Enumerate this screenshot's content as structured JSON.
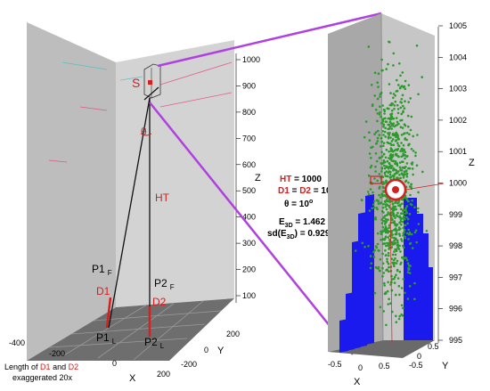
{
  "left_plot": {
    "z_ticks": [
      "100",
      "200",
      "300",
      "400",
      "500",
      "600",
      "700",
      "800",
      "900",
      "1000"
    ],
    "z_axis_label": "Z",
    "x_ticks": [
      "-400",
      "-200",
      "0",
      "200"
    ],
    "x_axis_label": "X",
    "y_ticks": [
      "-200",
      "0",
      "200"
    ],
    "y_axis_label": "Y",
    "labels": {
      "source": "S",
      "theta": "θ",
      "ht": "HT",
      "p1": "P1",
      "p1_sub_f": "F",
      "p1_sub_l": "L",
      "p2": "P2",
      "p2_sub_f": "F",
      "p2_sub_l": "L",
      "d1": "D1",
      "d2": "D2"
    },
    "note_prefix": "Length of ",
    "note_d1": "D1",
    "note_and": " and ",
    "note_d2": "D2",
    "note_line2": "exaggerated 20x"
  },
  "params": {
    "ht_label": "HT",
    "ht_value": " = 1000",
    "d1": "D1",
    "eq": " = ",
    "d2": "D2",
    "d_value": " = 10",
    "theta_label": "θ = 10",
    "theta_sup": "o",
    "e3d_label": "E",
    "e3d_sub": "3D",
    "e3d_value": " = 1.462",
    "sd_label": "sd(E",
    "sd_sub": "3D",
    "sd_value": ") = 0.929"
  },
  "right_plot": {
    "z_ticks": [
      "995",
      "996",
      "997",
      "998",
      "999",
      "1000",
      "1001",
      "1002",
      "1003",
      "1004",
      "1005"
    ],
    "z_axis_label": "Z",
    "x_ticks": [
      "-0.5",
      "0",
      "0.5"
    ],
    "x_axis_label": "X",
    "y_ticks": [
      "-0.5",
      "0",
      "0.5"
    ],
    "y_axis_label": "Y"
  },
  "colors": {
    "accent": "#b040e0",
    "red": "#d42020",
    "blue": "#1a1aee",
    "green": "#2c9a2c"
  }
}
